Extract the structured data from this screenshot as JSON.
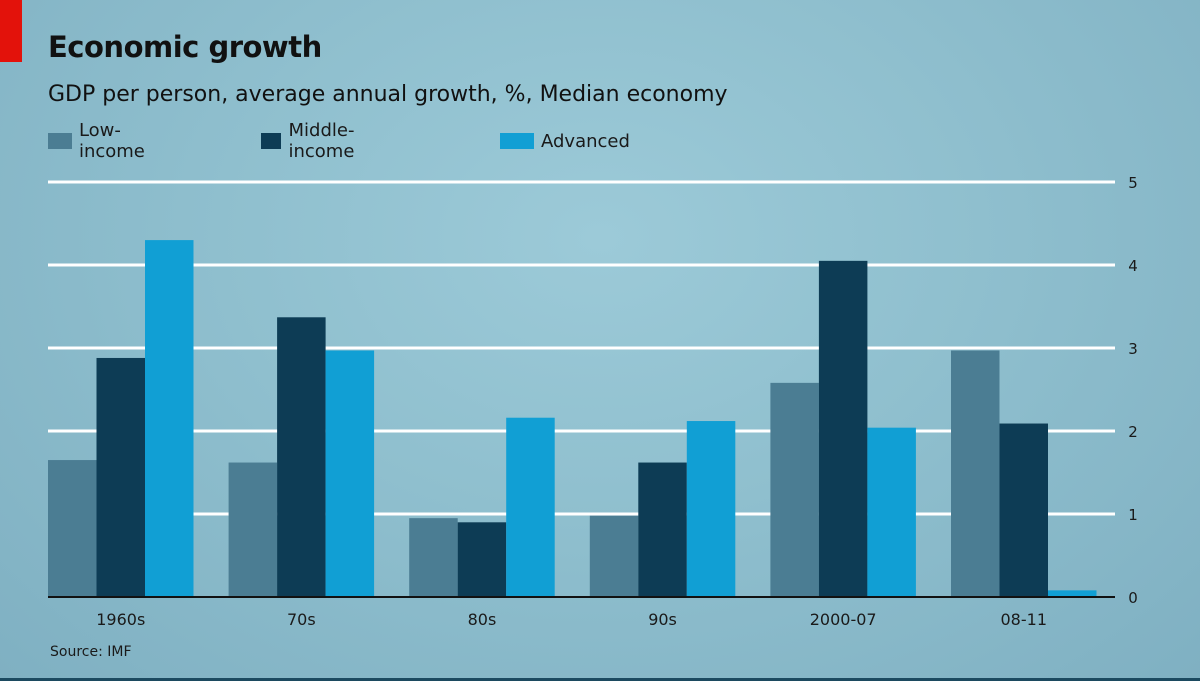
{
  "header": {
    "title": "Economic growth",
    "subtitle": "GDP per person, average annual growth, %, Median economy"
  },
  "footer": {
    "source": "Source: IMF"
  },
  "colors": {
    "low_income": "#4b7d93",
    "middle_income": "#0d3c55",
    "advanced": "#119fd4",
    "gridline": "#ffffff",
    "baseline": "#111111",
    "brand_red": "#e3120b"
  },
  "chart_data": {
    "type": "bar",
    "title": "Economic growth",
    "subtitle": "GDP per person, average annual growth, %, Median economy",
    "xlabel": "",
    "ylabel": "",
    "categories": [
      "1960s",
      "70s",
      "80s",
      "90s",
      "2000-07",
      "08-11"
    ],
    "series": [
      {
        "name": "Low-income",
        "color": "#4b7d93",
        "values": [
          1.65,
          1.62,
          0.95,
          0.98,
          2.58,
          2.97
        ]
      },
      {
        "name": "Middle-income",
        "color": "#0d3c55",
        "values": [
          2.88,
          3.37,
          0.9,
          1.62,
          4.05,
          2.09
        ]
      },
      {
        "name": "Advanced",
        "color": "#119fd4",
        "values": [
          4.3,
          2.97,
          2.16,
          2.12,
          2.04,
          0.08
        ]
      }
    ],
    "ylim": [
      0,
      5
    ],
    "yticks": [
      0,
      1,
      2,
      3,
      4,
      5
    ],
    "ytick_labels": [
      "0",
      "1",
      "2",
      "3",
      "4",
      "5"
    ],
    "y_axis_side": "right",
    "grid": true,
    "legend_position": "top-left"
  }
}
